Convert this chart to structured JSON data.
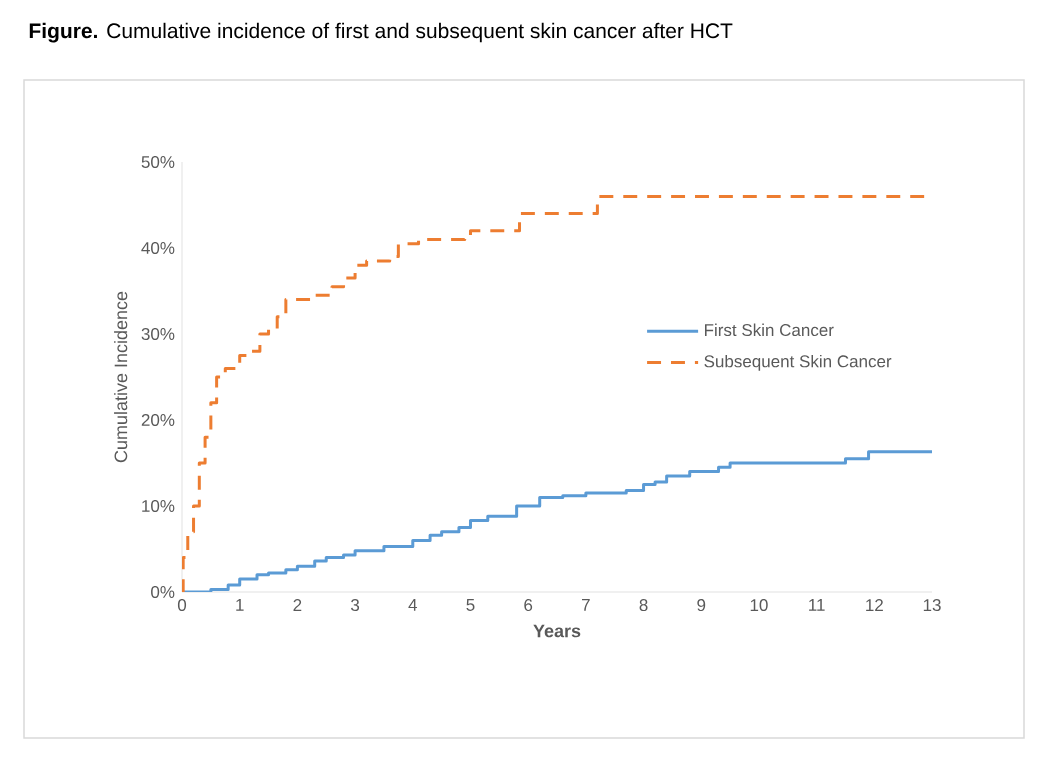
{
  "chart_data": {
    "type": "step",
    "title": "**Figure.** Cumulative incidence of first and subsequent skin cancer after HCT",
    "xlabel": "Years",
    "ylabel": "Cumulative Incidence",
    "xlim": [
      0,
      13
    ],
    "ylim": [
      0,
      50
    ],
    "xticks": [
      0,
      1,
      2,
      3,
      4,
      5,
      6,
      7,
      8,
      9,
      10,
      11,
      12,
      13
    ],
    "yticks": [
      {
        "value": 0,
        "label": "0%"
      },
      {
        "value": 10,
        "label": "10%"
      },
      {
        "value": 20,
        "label": "20%"
      },
      {
        "value": 30,
        "label": "30%"
      },
      {
        "value": 40,
        "label": "40%"
      },
      {
        "value": 50,
        "label": "50%"
      }
    ],
    "legend": "right",
    "series": [
      {
        "name": "First Skin Cancer",
        "color": "#5b9bd5",
        "line_style": "solid",
        "x": [
          0,
          0.5,
          0.8,
          1.0,
          1.3,
          1.5,
          1.8,
          2.0,
          2.3,
          2.5,
          2.8,
          3.0,
          3.5,
          4.0,
          4.3,
          4.5,
          4.8,
          5.0,
          5.3,
          5.8,
          6.2,
          6.6,
          7.0,
          7.7,
          8.0,
          8.2,
          8.4,
          8.8,
          9.3,
          9.5,
          11.5,
          11.9,
          13
        ],
        "values": [
          0,
          0.3,
          0.8,
          1.5,
          2.0,
          2.2,
          2.6,
          3.0,
          3.6,
          4.0,
          4.3,
          4.8,
          5.3,
          6.0,
          6.6,
          7.0,
          7.5,
          8.3,
          8.8,
          10.0,
          11.0,
          11.2,
          11.5,
          11.8,
          12.5,
          12.8,
          13.5,
          14.0,
          14.5,
          15.0,
          15.5,
          16.3,
          16.3
        ]
      },
      {
        "name": "Subsequent Skin Cancer",
        "color": "#ed7d31",
        "line_style": "dashed",
        "x": [
          0,
          0.02,
          0.1,
          0.2,
          0.3,
          0.4,
          0.5,
          0.6,
          0.75,
          1.0,
          1.2,
          1.35,
          1.5,
          1.65,
          1.8,
          2.3,
          2.6,
          2.8,
          3.0,
          3.2,
          3.6,
          3.75,
          4.1,
          4.9,
          5.0,
          5.85,
          7.2,
          13
        ],
        "values": [
          0,
          4,
          7,
          10,
          15,
          18,
          22,
          25,
          26,
          27.5,
          28,
          30,
          30.5,
          32,
          34,
          34.5,
          35.5,
          36.5,
          38,
          38.5,
          39,
          40.5,
          41,
          41.5,
          42,
          44,
          46,
          46
        ]
      }
    ]
  }
}
